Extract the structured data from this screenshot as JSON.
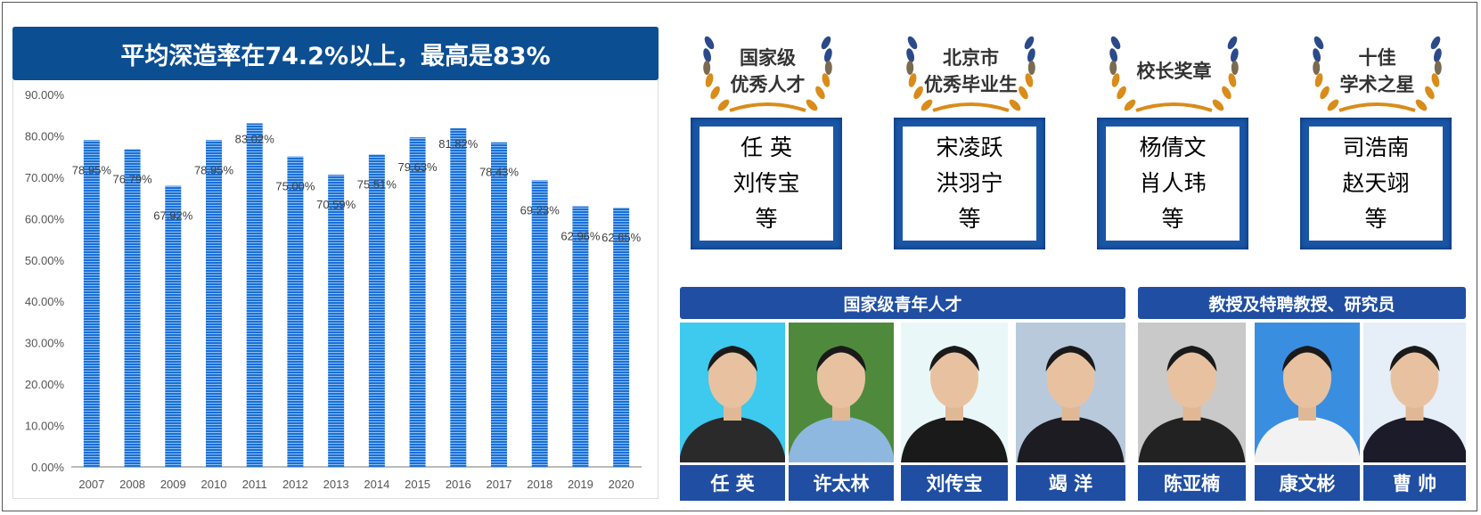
{
  "chart_data": {
    "type": "bar",
    "title": "平均深造率在74.2%以上，最高是83%",
    "categories": [
      "2007",
      "2008",
      "2009",
      "2010",
      "2011",
      "2012",
      "2013",
      "2014",
      "2015",
      "2016",
      "2017",
      "2018",
      "2019",
      "2020"
    ],
    "values": [
      78.95,
      76.79,
      67.92,
      78.95,
      83.02,
      75.0,
      70.59,
      75.51,
      79.63,
      81.82,
      78.43,
      69.23,
      62.96,
      62.65
    ],
    "data_labels": [
      "78.95%",
      "76.79%",
      "67.92%",
      "78.95%",
      "83.02%",
      "75.00%",
      "70.59%",
      "75.51%",
      "79.63%",
      "81.82%",
      "78.43%",
      "69.23%",
      "62.96%",
      "62.65%"
    ],
    "yticks": [
      "0.00%",
      "10.00%",
      "20.00%",
      "30.00%",
      "40.00%",
      "50.00%",
      "60.00%",
      "70.00%",
      "80.00%",
      "90.00%"
    ],
    "ylim": [
      0,
      90
    ],
    "xlabel": "",
    "ylabel": "",
    "grid": false,
    "bar_color": "#1a6fd6"
  },
  "awards": [
    {
      "title1": "国家级",
      "title2": "优秀人才",
      "names": [
        "任  英",
        "刘传宝",
        "等"
      ]
    },
    {
      "title1": "北京市",
      "title2": "优秀毕业生",
      "names": [
        "宋凌跃",
        "洪羽宁",
        "等"
      ]
    },
    {
      "title1": "校长奖章",
      "title2": "",
      "names": [
        "杨倩文",
        "肖人玮",
        "等"
      ]
    },
    {
      "title1": "十佳",
      "title2": "学术之星",
      "names": [
        "司浩南",
        "赵天翊",
        "等"
      ]
    }
  ],
  "groups": {
    "young": "国家级青年人才",
    "prof": "教授及特聘教授、研究员"
  },
  "people": [
    "任  英",
    "许太林",
    "刘传宝",
    "竭  洋",
    "陈亚楠",
    "康文彬",
    "曹  帅"
  ],
  "colors": {
    "primary": "#0c4e92",
    "header": "#1f4ea3",
    "laurel_gold": "#d98c1a",
    "laurel_blue": "#2b4a8a"
  }
}
